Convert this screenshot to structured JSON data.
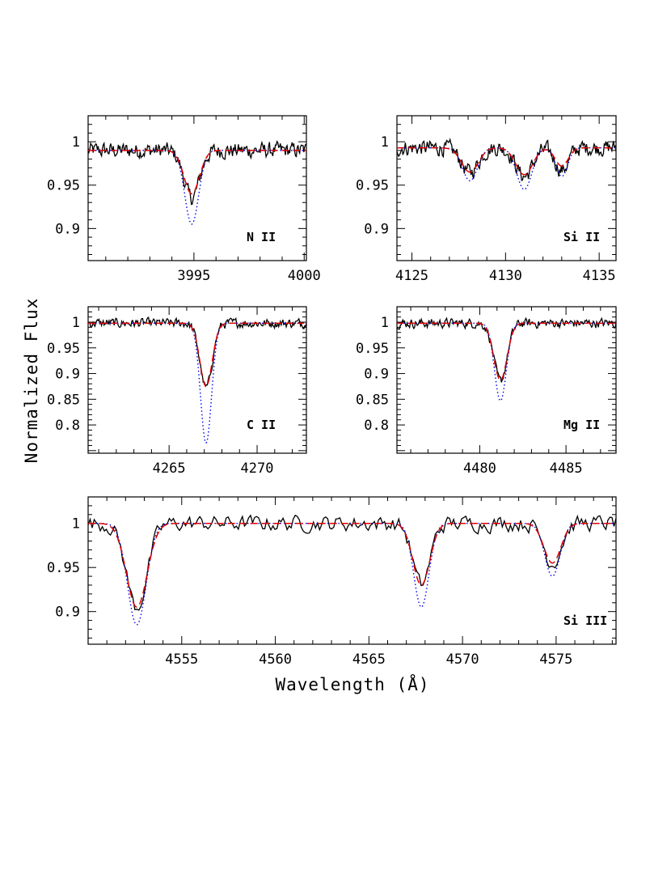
{
  "figure": {
    "ylabel": "Normalized Flux",
    "xlabel": "Wavelength (Å)"
  },
  "colors": {
    "observed": "#000000",
    "model_dashed": "#e00000",
    "model_dotted": "#0000ee"
  },
  "chart_data": [
    {
      "type": "line",
      "panel": "NII",
      "label": "N II",
      "xlim": [
        3990.2,
        4000.1
      ],
      "ylim": [
        0.863,
        1.03
      ],
      "xticks": [
        3995,
        4000
      ],
      "yticks": [
        0.9,
        0.95,
        1
      ],
      "ytick_labels": [
        "0.9",
        "0.95",
        "1"
      ],
      "continuum": 0.99,
      "lines": [
        {
          "center": 3994.9,
          "obs": 0.935,
          "red": 0.94,
          "blue": 0.905,
          "sigma": 0.35
        }
      ],
      "series": [
        {
          "style": "solid",
          "label_shown": false
        },
        {
          "style": "dashed",
          "label_shown": false
        },
        {
          "style": "dotted",
          "label_shown": false
        }
      ]
    },
    {
      "type": "line",
      "panel": "SiII",
      "label": "Si II",
      "xlim": [
        4124.2,
        4135.9
      ],
      "ylim": [
        0.863,
        1.03
      ],
      "xticks": [
        4125,
        4130,
        4135
      ],
      "yticks": [
        0.9,
        0.95,
        1
      ],
      "ytick_labels": [
        "0.9",
        "0.95",
        "1"
      ],
      "continuum": 0.993,
      "lines": [
        {
          "center": 4128.1,
          "obs": 0.965,
          "red": 0.965,
          "blue": 0.955,
          "sigma": 0.45
        },
        {
          "center": 4131.0,
          "obs": 0.96,
          "red": 0.962,
          "blue": 0.945,
          "sigma": 0.45
        },
        {
          "center": 4133.0,
          "obs": 0.967,
          "red": 0.972,
          "blue": 0.96,
          "sigma": 0.35
        }
      ]
    },
    {
      "type": "line",
      "panel": "CII",
      "label": "C II",
      "xlim": [
        4260.4,
        4272.8
      ],
      "ylim": [
        0.745,
        1.03
      ],
      "xticks": [
        4265,
        4270
      ],
      "yticks": [
        0.8,
        0.85,
        0.9,
        0.95,
        1
      ],
      "ytick_labels": [
        "0.8",
        "0.85",
        "0.9",
        "0.95",
        "1"
      ],
      "continuum": 0.998,
      "lines": [
        {
          "center": 4267.1,
          "obs": 0.872,
          "red": 0.875,
          "blue": 0.765,
          "sigma": 0.35
        }
      ]
    },
    {
      "type": "line",
      "panel": "MgII",
      "label": "Mg II",
      "xlim": [
        4475.2,
        4487.9
      ],
      "ylim": [
        0.745,
        1.03
      ],
      "xticks": [
        4480,
        4485
      ],
      "yticks": [
        0.8,
        0.85,
        0.9,
        0.95,
        1
      ],
      "ytick_labels": [
        "0.8",
        "0.85",
        "0.9",
        "0.95",
        "1"
      ],
      "continuum": 0.998,
      "lines": [
        {
          "center": 4481.2,
          "obs": 0.885,
          "red": 0.887,
          "blue": 0.847,
          "sigma": 0.38
        }
      ]
    },
    {
      "type": "line",
      "panel": "SiIII",
      "label": "Si III",
      "xlim": [
        4550.0,
        4578.2
      ],
      "ylim": [
        0.863,
        1.03
      ],
      "xticks": [
        4555,
        4560,
        4565,
        4570,
        4575
      ],
      "yticks": [
        0.9,
        0.95,
        1
      ],
      "ytick_labels": [
        "0.9",
        "0.95",
        "1"
      ],
      "continuum": 1.0,
      "lines": [
        {
          "center": 4552.6,
          "obs": 0.905,
          "red": 0.905,
          "blue": 0.885,
          "sigma": 0.55
        },
        {
          "center": 4567.8,
          "obs": 0.93,
          "red": 0.93,
          "blue": 0.905,
          "sigma": 0.45
        },
        {
          "center": 4574.8,
          "obs": 0.955,
          "red": 0.955,
          "blue": 0.94,
          "sigma": 0.45
        }
      ]
    }
  ]
}
